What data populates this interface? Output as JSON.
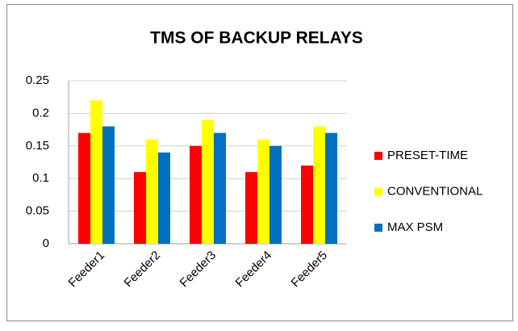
{
  "chart_data": {
    "type": "bar",
    "title": "TMS OF BACKUP RELAYS",
    "categories": [
      "Feeder1",
      "Feeder2",
      "Feeder3",
      "Feeder4",
      "Feeder5"
    ],
    "series": [
      {
        "name": "PRESET-TIME",
        "color": "#ff0000",
        "values": [
          0.17,
          0.11,
          0.15,
          0.11,
          0.12
        ]
      },
      {
        "name": "CONVENTIONAL",
        "color": "#ffff00",
        "values": [
          0.22,
          0.16,
          0.19,
          0.16,
          0.18
        ]
      },
      {
        "name": "MAX PSM",
        "color": "#0070c0",
        "values": [
          0.18,
          0.14,
          0.17,
          0.15,
          0.17
        ]
      }
    ],
    "ylim": [
      0,
      0.25
    ],
    "yticks": [
      0,
      0.05,
      0.1,
      0.15,
      0.2,
      0.25
    ],
    "grid": true,
    "legend": "right"
  }
}
